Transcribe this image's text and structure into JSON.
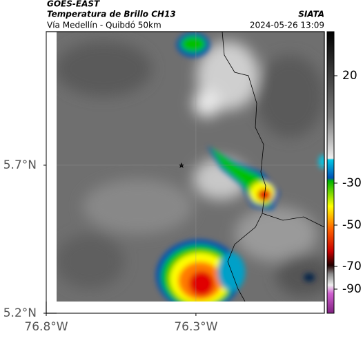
{
  "header": {
    "agency": "GOES-EAST",
    "title": "Temperatura de Brillo CH13",
    "subtitle": "Vía Medellín - Quibdó 50km",
    "org": "SIATA",
    "datetime": "2024-05-26 13:09"
  },
  "map": {
    "xlim": [
      -76.8,
      -75.871
    ],
    "ylim": [
      5.2,
      6.151
    ],
    "xticks": [
      {
        "value": -76.8,
        "label": "76.8°W"
      },
      {
        "value": -76.3,
        "label": "76.3°W"
      }
    ],
    "yticks": [
      {
        "value": 5.2,
        "label": "5.2°N"
      },
      {
        "value": 5.7,
        "label": "5.7°N"
      }
    ],
    "grid": true
  },
  "colorbar": {
    "ticks": [
      20,
      -30,
      -50,
      -70,
      -90
    ]
  }
}
